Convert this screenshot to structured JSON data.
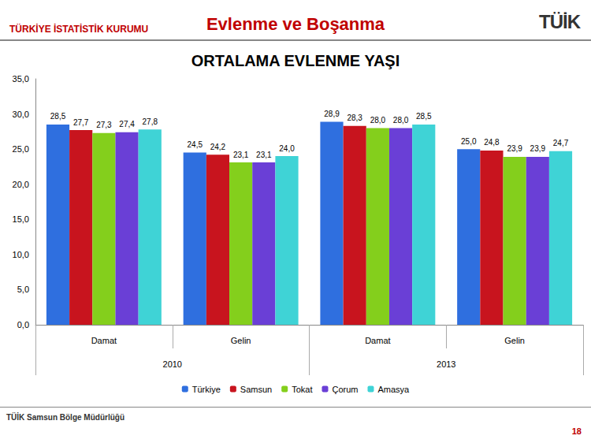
{
  "header": {
    "organization": "TÜRKİYE İSTATİSTİK KURUMU",
    "title": "Evlenme ve Boşanma",
    "logo": "TÜİK"
  },
  "footer": {
    "text": "TÜİK Samsun Bölge Müdürlüğü",
    "page": "18"
  },
  "chart_data": {
    "type": "bar",
    "title": "ORTALAMA EVLENME YAŞI",
    "categories": [
      "Damat",
      "Gelin",
      "Damat",
      "Gelin"
    ],
    "category_groups": [
      "2010",
      "2010",
      "2013",
      "2013"
    ],
    "series": [
      {
        "name": "Türkiye",
        "color": "#2f6fdf",
        "values": [
          28.5,
          24.5,
          28.9,
          25.0
        ],
        "value_labels": [
          "28,5",
          "24,5",
          "28,9",
          "25,0"
        ]
      },
      {
        "name": "Samsun",
        "color": "#c8141e",
        "values": [
          27.7,
          24.2,
          28.3,
          24.8
        ],
        "value_labels": [
          "27,7",
          "24,2",
          "28,3",
          "24,8"
        ]
      },
      {
        "name": "Tokat",
        "color": "#84cf1c",
        "values": [
          27.3,
          23.1,
          28.0,
          23.9
        ],
        "value_labels": [
          "27,3",
          "23,1",
          "28,0",
          "23,9"
        ]
      },
      {
        "name": "Çorum",
        "color": "#6a3fd6",
        "values": [
          27.4,
          23.1,
          28.0,
          23.9
        ],
        "value_labels": [
          "27,4",
          "23,1",
          "28,0",
          "23,9"
        ]
      },
      {
        "name": "Amasya",
        "color": "#3fd3d6",
        "values": [
          27.8,
          24.0,
          28.5,
          24.7
        ],
        "value_labels": [
          "27,8",
          "24,0",
          "28,5",
          "24,7"
        ]
      }
    ],
    "ylim": [
      0,
      35
    ],
    "yticks": [
      {
        "value": 0,
        "label": "0,0"
      },
      {
        "value": 5,
        "label": "5,0"
      },
      {
        "value": 10,
        "label": "10,0"
      },
      {
        "value": 15,
        "label": "15,0"
      },
      {
        "value": 20,
        "label": "20,0"
      },
      {
        "value": 25,
        "label": "25,0"
      },
      {
        "value": 30,
        "label": "30,0"
      },
      {
        "value": 35,
        "label": "35,0"
      }
    ],
    "grid": false,
    "legend": "bottom",
    "data_labels": true
  }
}
